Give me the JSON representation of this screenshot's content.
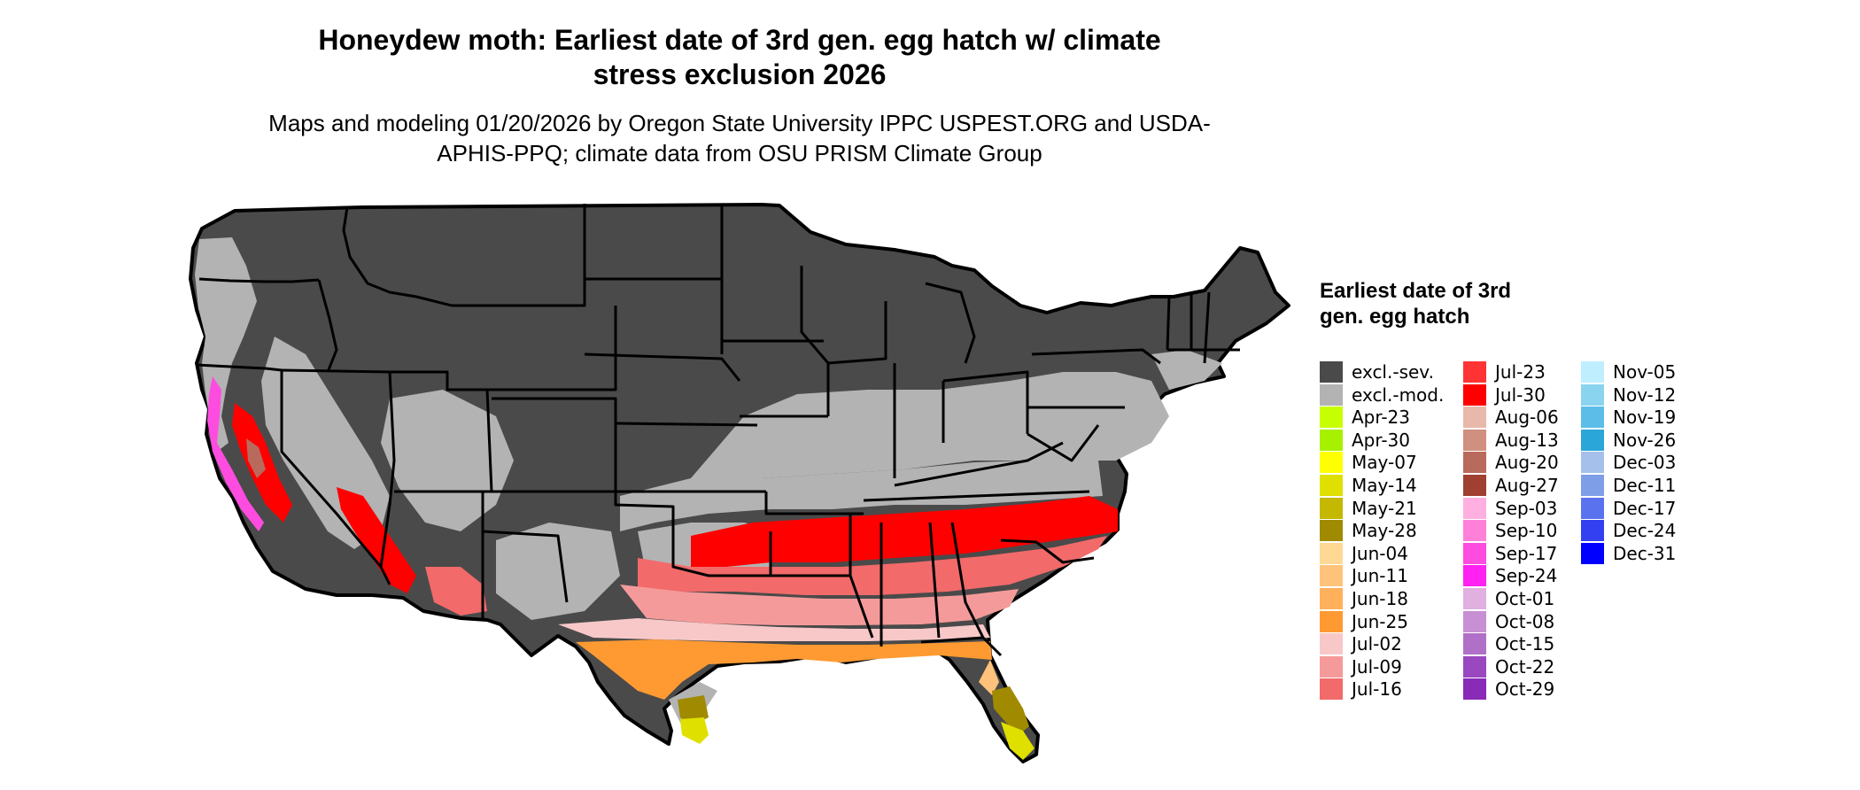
{
  "title": "Honeydew moth: Earliest date of 3rd gen. egg hatch w/ climate stress exclusion 2026",
  "subtitle": "Maps and modeling 01/20/2026 by Oregon State University IPPC USPEST.ORG and USDA-APHIS-PPQ; climate data from OSU PRISM Climate Group",
  "legend": {
    "title": "Earliest date of 3rd gen. egg hatch",
    "items": [
      {
        "label": "excl.-sev.",
        "color": "#4a4a4a"
      },
      {
        "label": "excl.-mod.",
        "color": "#b3b3b3"
      },
      {
        "label": "Apr-23",
        "color": "#c8ff00"
      },
      {
        "label": "Apr-30",
        "color": "#a6f000"
      },
      {
        "label": "May-07",
        "color": "#ffff00"
      },
      {
        "label": "May-14",
        "color": "#e0e000"
      },
      {
        "label": "May-21",
        "color": "#c4b800"
      },
      {
        "label": "May-28",
        "color": "#a08a00"
      },
      {
        "label": "Jun-04",
        "color": "#ffd894"
      },
      {
        "label": "Jun-11",
        "color": "#ffc27a"
      },
      {
        "label": "Jun-18",
        "color": "#ffb05a"
      },
      {
        "label": "Jun-25",
        "color": "#ff9a33"
      },
      {
        "label": "Jul-02",
        "color": "#f8c8c8"
      },
      {
        "label": "Jul-09",
        "color": "#f59a9a"
      },
      {
        "label": "Jul-16",
        "color": "#f26a6a"
      },
      {
        "label": "Jul-23",
        "color": "#ff3333"
      },
      {
        "label": "Jul-30",
        "color": "#ff0000"
      },
      {
        "label": "Aug-06",
        "color": "#e8b8aa"
      },
      {
        "label": "Aug-13",
        "color": "#d09080"
      },
      {
        "label": "Aug-20",
        "color": "#b86a5c"
      },
      {
        "label": "Aug-27",
        "color": "#a04030"
      },
      {
        "label": "Sep-03",
        "color": "#ffb0e0"
      },
      {
        "label": "Sep-10",
        "color": "#ff80d8"
      },
      {
        "label": "Sep-17",
        "color": "#ff4ce0"
      },
      {
        "label": "Sep-24",
        "color": "#ff22f0"
      },
      {
        "label": "Oct-01",
        "color": "#e0b0e0"
      },
      {
        "label": "Oct-08",
        "color": "#c890d4"
      },
      {
        "label": "Oct-15",
        "color": "#b070c8"
      },
      {
        "label": "Oct-22",
        "color": "#9a48c0"
      },
      {
        "label": "Oct-29",
        "color": "#8a2ab8"
      },
      {
        "label": "Nov-05",
        "color": "#bfefff"
      },
      {
        "label": "Nov-12",
        "color": "#8ad4f0"
      },
      {
        "label": "Nov-19",
        "color": "#5bbde8"
      },
      {
        "label": "Nov-26",
        "color": "#2aa6d8"
      },
      {
        "label": "Dec-03",
        "color": "#a6c0ec"
      },
      {
        "label": "Dec-11",
        "color": "#7f9ee8"
      },
      {
        "label": "Dec-17",
        "color": "#5b72ee"
      },
      {
        "label": "Dec-24",
        "color": "#3340f2"
      },
      {
        "label": "Dec-31",
        "color": "#0000ff"
      }
    ]
  },
  "colors": {
    "state_border": "#000000",
    "severe_exclusion": "#4a4a4a",
    "moderate_exclusion": "#b3b3b3"
  }
}
